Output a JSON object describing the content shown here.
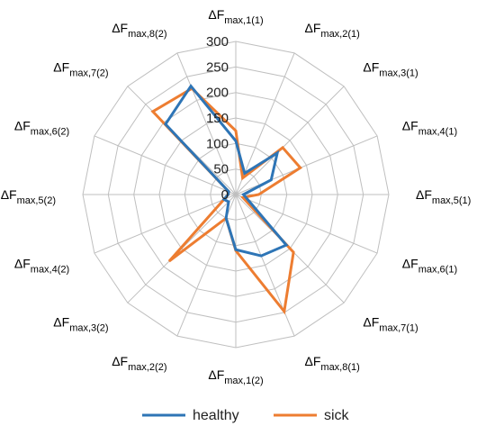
{
  "chart_data": {
    "type": "radar",
    "r_min": 0,
    "r_max": 300,
    "ticks": [
      "0",
      "50",
      "100",
      "150",
      "200",
      "250",
      "300"
    ],
    "tick_values": [
      0,
      50,
      100,
      150,
      200,
      250,
      300
    ],
    "gridlines": true,
    "legend_position": "bottom",
    "axes": [
      {
        "base": "ΔF",
        "sub": "max,1(1)"
      },
      {
        "base": "ΔF",
        "sub": "max,2(1)"
      },
      {
        "base": "ΔF",
        "sub": "max,3(1)"
      },
      {
        "base": "ΔF",
        "sub": "max,4(1)"
      },
      {
        "base": "ΔF",
        "sub": "max,5(1)"
      },
      {
        "base": "ΔF",
        "sub": "max,6(1)"
      },
      {
        "base": "ΔF",
        "sub": "max,7(1)"
      },
      {
        "base": "ΔF",
        "sub": "max,8(1)"
      },
      {
        "base": "ΔF",
        "sub": "max,1(2)"
      },
      {
        "base": "ΔF",
        "sub": "max,2(2)"
      },
      {
        "base": "ΔF",
        "sub": "max,3(2)"
      },
      {
        "base": "ΔF",
        "sub": "max,4(2)"
      },
      {
        "base": "ΔF",
        "sub": "max,5(2)"
      },
      {
        "base": "ΔF",
        "sub": "max,6(2)"
      },
      {
        "base": "ΔF",
        "sub": "max,7(2)"
      },
      {
        "base": "ΔF",
        "sub": "max,8(2)"
      }
    ],
    "series": [
      {
        "name": "healthy",
        "color": "#2e75b6",
        "values": [
          105,
          45,
          115,
          75,
          15,
          25,
          140,
          130,
          108,
          50,
          20,
          25,
          15,
          15,
          195,
          230
        ]
      },
      {
        "name": "sick",
        "color": "#ed7d31",
        "values": [
          125,
          35,
          130,
          137,
          45,
          15,
          160,
          248,
          110,
          50,
          185,
          25,
          15,
          15,
          230,
          225
        ]
      }
    ]
  }
}
